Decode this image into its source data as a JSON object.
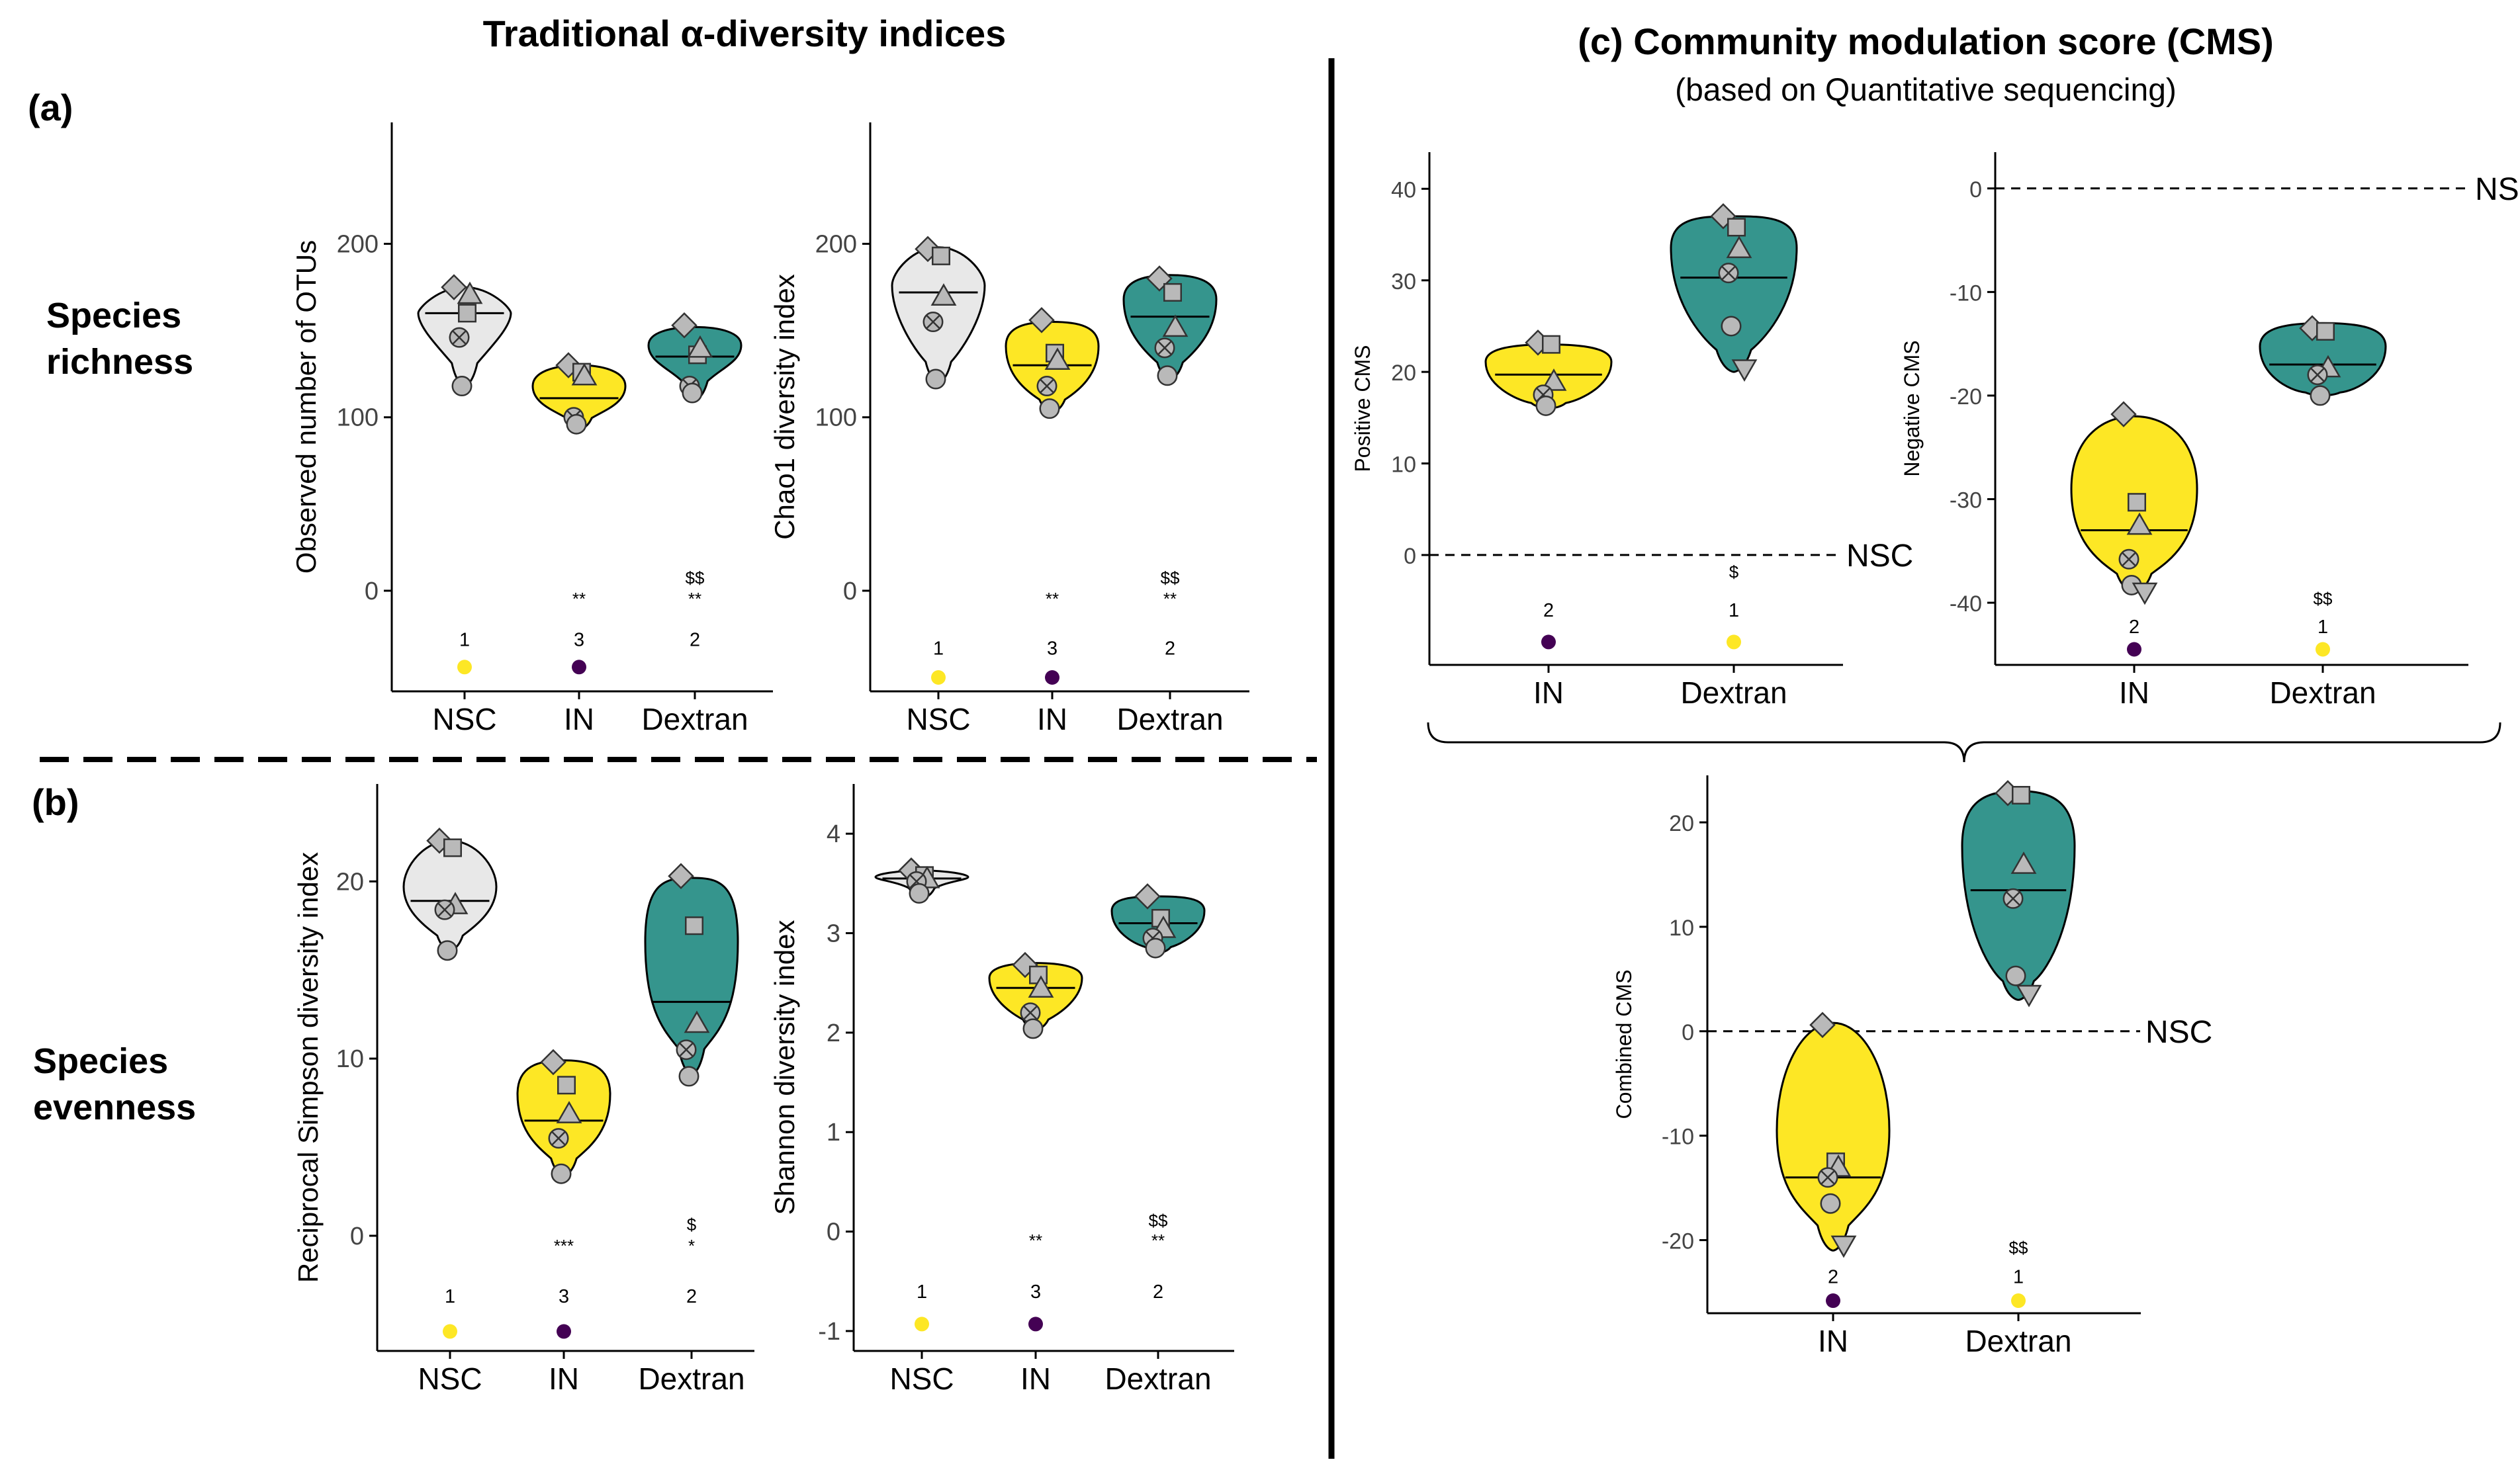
{
  "headings": {
    "left_title": "Traditional α-diversity indices",
    "right_title": "(c) Community modulation score (CMS)",
    "right_subtitle": "(based on Quantitative sequencing)",
    "panel_a": "(a)",
    "panel_b": "(b)",
    "row_a_label": [
      "Species",
      "richness"
    ],
    "row_b_label": [
      "Species",
      "evenness"
    ]
  },
  "colors": {
    "NSC": "#e8e8e8",
    "IN": "#fde725",
    "Dextran": "#35958d",
    "rank_yellow": "#fde725",
    "rank_purple": "#440154",
    "marker": "#b9b9b9",
    "marker_dark": "#a8a8a8"
  },
  "chart_data": [
    {
      "id": "otus",
      "type": "violin",
      "ylabel": "Observed number of OTUs",
      "ylim": [
        -58,
        270
      ],
      "yticks": [
        0,
        100,
        200
      ],
      "categories": [
        "NSC",
        "IN",
        "Dextran"
      ],
      "groups": [
        {
          "name": "NSC",
          "median": 160,
          "q": [
            175,
            160,
            140,
            118
          ],
          "points": [
            175,
            160,
            171,
            146,
            118
          ]
        },
        {
          "name": "IN",
          "median": 111,
          "q": [
            130,
            125,
            104,
            93
          ],
          "points": [
            130,
            126,
            124,
            100,
            96
          ]
        },
        {
          "name": "Dextran",
          "median": 135,
          "q": [
            152,
            148,
            128,
            110
          ],
          "points": [
            153,
            136,
            140,
            118,
            114
          ]
        }
      ],
      "annotations": [
        {
          "category": "IN",
          "value": -8,
          "text": "**"
        },
        {
          "category": "Dextran",
          "value": -8,
          "text": "**"
        },
        {
          "category": "Dextran",
          "value": 4,
          "text": "$$"
        }
      ],
      "ranks": [
        {
          "category": "NSC",
          "rank": "1",
          "dot": "yellow"
        },
        {
          "category": "IN",
          "rank": "3",
          "dot": "purple"
        },
        {
          "category": "Dextran",
          "rank": "2",
          "dot": "none"
        }
      ],
      "rank_label_value": -28,
      "rank_dot_value": -44
    },
    {
      "id": "chao1",
      "type": "violin",
      "ylabel": "Chao1 diversity index",
      "ylim": [
        -58,
        270
      ],
      "yticks": [
        0,
        100,
        200
      ],
      "categories": [
        "NSC",
        "IN",
        "Dextran"
      ],
      "groups": [
        {
          "name": "NSC",
          "median": 172,
          "q": [
            198,
            180,
            140,
            120
          ],
          "points": [
            197,
            193,
            170,
            155,
            122
          ]
        },
        {
          "name": "IN",
          "median": 130,
          "q": [
            155,
            152,
            115,
            103
          ],
          "points": [
            156,
            137,
            133,
            118,
            105
          ]
        },
        {
          "name": "Dextran",
          "median": 158,
          "q": [
            182,
            178,
            138,
            122
          ],
          "points": [
            180,
            172,
            152,
            140,
            124
          ]
        }
      ],
      "annotations": [
        {
          "category": "IN",
          "value": -8,
          "text": "**"
        },
        {
          "category": "Dextran",
          "value": -8,
          "text": "**"
        },
        {
          "category": "Dextran",
          "value": 4,
          "text": "$$"
        }
      ],
      "ranks": [
        {
          "category": "NSC",
          "rank": "1",
          "dot": "yellow"
        },
        {
          "category": "IN",
          "rank": "3",
          "dot": "purple"
        },
        {
          "category": "Dextran",
          "rank": "2",
          "dot": "none"
        }
      ],
      "rank_label_value": -33,
      "rank_dot_value": -50
    },
    {
      "id": "simpson",
      "type": "violin",
      "ylabel": "Reciprocal Simpson diversity index",
      "ylim": [
        -6.5,
        25.5
      ],
      "yticks": [
        0,
        10,
        20
      ],
      "categories": [
        "NSC",
        "IN",
        "Dextran"
      ],
      "groups": [
        {
          "name": "NSC",
          "median": 18.9,
          "q": [
            22.3,
            20.5,
            17.5,
            16.1
          ],
          "points": [
            22.3,
            21.9,
            18.7,
            18.4,
            16.1
          ]
        },
        {
          "name": "IN",
          "median": 6.5,
          "q": [
            9.9,
            9.5,
            5.0,
            3.4
          ],
          "points": [
            9.8,
            8.5,
            6.9,
            5.5,
            3.5
          ]
        },
        {
          "name": "Dextran",
          "median": 13.2,
          "q": [
            20.2,
            20.0,
            11.5,
            9.1
          ],
          "points": [
            20.3,
            17.5,
            12.0,
            10.5,
            9.0
          ]
        }
      ],
      "annotations": [
        {
          "category": "IN",
          "value": -0.9,
          "text": "***"
        },
        {
          "category": "Dextran",
          "value": -0.9,
          "text": "*"
        },
        {
          "category": "Dextran",
          "value": 0.3,
          "text": "$"
        }
      ],
      "ranks": [
        {
          "category": "NSC",
          "rank": "1",
          "dot": "yellow"
        },
        {
          "category": "IN",
          "rank": "3",
          "dot": "purple"
        },
        {
          "category": "Dextran",
          "rank": "2",
          "dot": "none"
        }
      ],
      "rank_label_value": -3.4,
      "rank_dot_value": -5.4
    },
    {
      "id": "shannon",
      "type": "violin",
      "ylabel": "Shannon diversity index",
      "ylim": [
        -1.2,
        4.5
      ],
      "yticks": [
        -1,
        0,
        1,
        2,
        3,
        4
      ],
      "categories": [
        "NSC",
        "IN",
        "Dextran"
      ],
      "groups": [
        {
          "name": "NSC",
          "median": 3.55,
          "q": [
            3.63,
            3.58,
            3.52,
            3.35
          ],
          "points": [
            3.63,
            3.58,
            3.55,
            3.52,
            3.4
          ]
        },
        {
          "name": "IN",
          "median": 2.45,
          "q": [
            2.7,
            2.65,
            2.2,
            2.03
          ],
          "points": [
            2.68,
            2.58,
            2.45,
            2.2,
            2.04
          ]
        },
        {
          "name": "Dextran",
          "median": 3.1,
          "q": [
            3.37,
            3.35,
            2.9,
            2.8
          ],
          "points": [
            3.37,
            3.15,
            3.05,
            2.95,
            2.85
          ]
        }
      ],
      "annotations": [
        {
          "category": "IN",
          "value": -0.15,
          "text": "**"
        },
        {
          "category": "Dextran",
          "value": -0.15,
          "text": "**"
        },
        {
          "category": "Dextran",
          "value": 0.05,
          "text": "$$"
        }
      ],
      "ranks": [
        {
          "category": "NSC",
          "rank": "1",
          "dot": "yellow"
        },
        {
          "category": "IN",
          "rank": "3",
          "dot": "purple"
        },
        {
          "category": "Dextran",
          "rank": "2",
          "dot": "none"
        }
      ],
      "rank_label_value": -0.6,
      "rank_dot_value": -0.93
    },
    {
      "id": "positive_cms",
      "type": "violin",
      "ylabel": "Positive CMS",
      "ylim": [
        -12,
        44
      ],
      "yticks": [
        0,
        10,
        20,
        30,
        40
      ],
      "categories": [
        "IN",
        "Dextran"
      ],
      "groups": [
        {
          "name": "IN",
          "median": 19.7,
          "q": [
            23.0,
            22.5,
            17.0,
            16.0
          ],
          "points": [
            23.2,
            23.0,
            19.0,
            17.5,
            16.3
          ]
        },
        {
          "name": "Dextran",
          "median": 30.3,
          "q": [
            37.0,
            36.8,
            24.0,
            20.0
          ],
          "points": [
            37.0,
            35.8,
            33.5,
            30.8,
            25.0,
            20.3
          ]
        }
      ],
      "reference": {
        "value": 0,
        "label": "NSC"
      },
      "annotations": [
        {
          "category": "Dextran",
          "value": -2.5,
          "text": "$"
        }
      ],
      "ranks": [
        {
          "category": "IN",
          "rank": "2",
          "dot": "purple"
        },
        {
          "category": "Dextran",
          "rank": "1",
          "dot": "yellow"
        }
      ],
      "rank_label_value": -6,
      "rank_dot_value": -9.5
    },
    {
      "id": "negative_cms",
      "type": "violin",
      "ylabel": "Negative CMS",
      "ylim": [
        -46,
        3.5
      ],
      "yticks": [
        -40,
        -30,
        -20,
        -10,
        0
      ],
      "categories": [
        "IN",
        "Dextran"
      ],
      "groups": [
        {
          "name": "IN",
          "median": -33.0,
          "q": [
            -22.0,
            -25.0,
            -36.0,
            -39.0
          ],
          "points": [
            -21.8,
            -30.3,
            -32.5,
            -35.8,
            -38.3,
            -39.0
          ]
        },
        {
          "name": "Dextran",
          "median": -17.0,
          "q": [
            -13.0,
            -13.5,
            -19.5,
            -20.0
          ],
          "points": [
            -13.5,
            -13.8,
            -17.3,
            -18.0,
            -20.0
          ]
        }
      ],
      "reference": {
        "value": 0,
        "label": "NSC"
      },
      "annotations": [
        {
          "category": "Dextran",
          "value": -40.2,
          "text": "$$"
        }
      ],
      "ranks": [
        {
          "category": "IN",
          "rank": "2",
          "dot": "purple"
        },
        {
          "category": "Dextran",
          "rank": "1",
          "dot": "yellow"
        }
      ],
      "rank_label_value": -42.3,
      "rank_dot_value": -44.5
    },
    {
      "id": "combined_cms",
      "type": "violin",
      "ylabel": "Combined CMS",
      "ylim": [
        -27,
        24.5
      ],
      "yticks": [
        -20,
        -10,
        0,
        10,
        20
      ],
      "categories": [
        "IN",
        "Dextran"
      ],
      "groups": [
        {
          "name": "IN",
          "median": -14.0,
          "q": [
            0.8,
            -5.0,
            -17.0,
            -21.0
          ],
          "points": [
            0.6,
            -12.5,
            -13.0,
            -14.0,
            -16.5,
            -20.5
          ]
        },
        {
          "name": "Dextran",
          "median": 13.5,
          "q": [
            23.0,
            22.0,
            6.0,
            3.0
          ],
          "points": [
            22.8,
            22.6,
            16.0,
            12.7,
            5.3,
            3.5
          ]
        }
      ],
      "reference": {
        "value": 0,
        "label": "NSC"
      },
      "annotations": [
        {
          "category": "Dextran",
          "value": -21.3,
          "text": "$$"
        }
      ],
      "ranks": [
        {
          "category": "IN",
          "rank": "2",
          "dot": "purple"
        },
        {
          "category": "Dextran",
          "rank": "1",
          "dot": "yellow"
        }
      ],
      "rank_label_value": -23.5,
      "rank_dot_value": -25.8
    }
  ]
}
